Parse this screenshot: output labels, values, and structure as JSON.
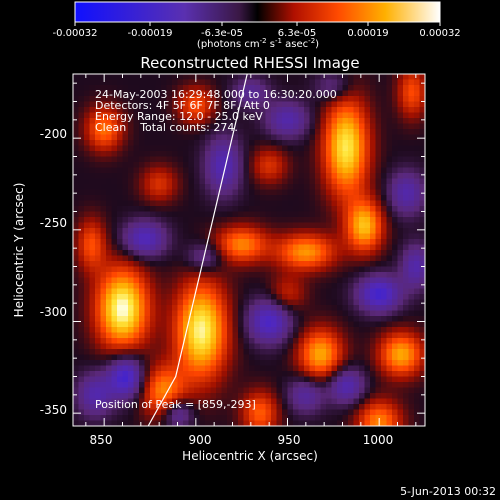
{
  "colorbar": {
    "ticks": [
      "-0.00032",
      "-0.00019",
      "-6.3e-05",
      "6.3e-05",
      "0.00019",
      "0.00032"
    ],
    "unit_parts": [
      "(photons cm",
      "-2",
      " s",
      "-1",
      " asec",
      "-2",
      ")"
    ]
  },
  "chart_data": {
    "type": "heatmap",
    "title": "Reconstructed RHESSI Image",
    "xlabel": "Heliocentric X (arcsec)",
    "ylabel": "Heliocentric Y (arcsec)",
    "xlim": [
      833,
      1025
    ],
    "ylim": [
      -357,
      -165
    ],
    "xticks": [
      "850",
      "900",
      "950",
      "1000"
    ],
    "yticks": [
      "-200",
      "-250",
      "-300",
      "-350"
    ],
    "value_range": [
      -0.00032,
      0.00032
    ],
    "peak": [
      859,
      -293
    ],
    "annotations": [
      "24-May-2003 16:29:48.000 to 16:30:20.000",
      "Detectors: 4F 5F 6F 7F 8F, Att 0",
      "Energy Range: 12.0 - 25.0 keV",
      "Clean    Total counts: 274.",
      "Position of Peak = [859,-293]"
    ],
    "limb_line": [
      [
        928,
        -165
      ],
      [
        889,
        -330
      ],
      [
        874,
        -357
      ]
    ]
  },
  "footer": {
    "date": "5-Jun-2013 00:32"
  }
}
